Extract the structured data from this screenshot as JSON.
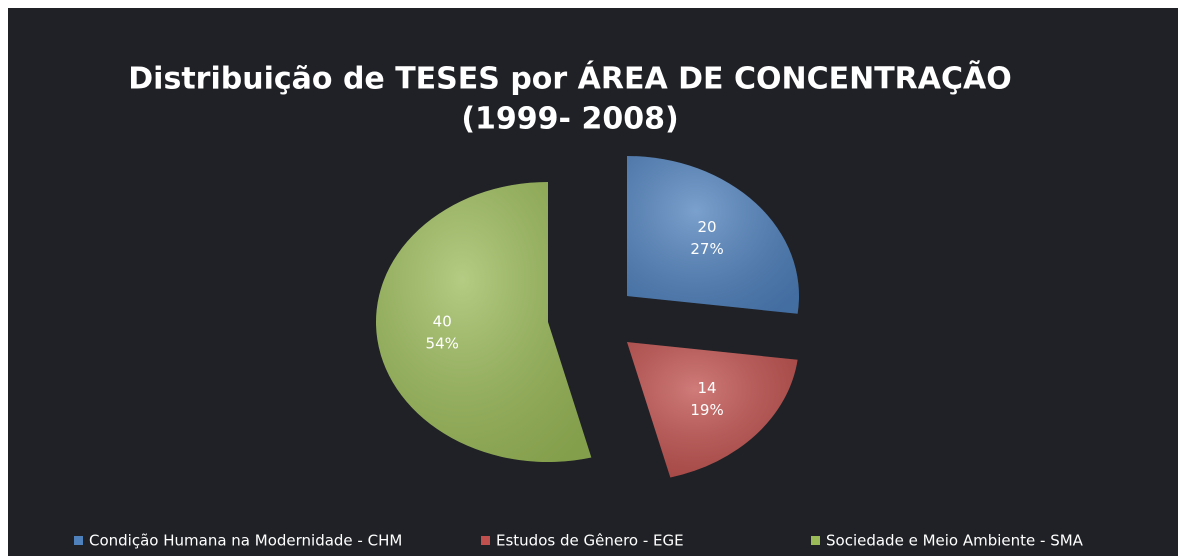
{
  "chart_data": {
    "type": "pie",
    "title": "Distribuição de TESES por ÁREA DE CONCENTRAÇÃO",
    "subtitle": "(1999- 2008)",
    "categories": [
      "Condição Humana na Modernidade - CHM",
      "Estudos de Gênero - EGE",
      "Sociedade e Meio Ambiente - SMA"
    ],
    "values": [
      20,
      14,
      40
    ],
    "percent_labels": [
      "27%",
      "19%",
      "54%"
    ],
    "colors": [
      "#4f81bd",
      "#c0504d",
      "#9bbb59"
    ],
    "legend": "bottom"
  }
}
